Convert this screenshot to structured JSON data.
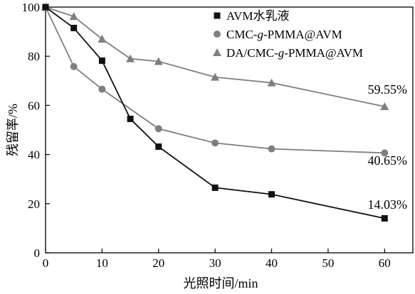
{
  "chart_data": {
    "type": "line",
    "xlabel": "光照时间/min",
    "ylabel": "残留率/%",
    "xlim": [
      0,
      65
    ],
    "ylim": [
      0,
      100
    ],
    "xticks": [
      0,
      10,
      20,
      30,
      40,
      50,
      60
    ],
    "yticks": [
      0,
      20,
      40,
      60,
      80,
      100
    ],
    "legend_position": "top-right",
    "series": [
      {
        "name_parts": [
          {
            "text": "AVM水乳液",
            "italic": false
          }
        ],
        "marker": "square",
        "color": "#111111",
        "x": [
          0,
          5,
          10,
          15,
          20,
          30,
          40,
          60
        ],
        "y": [
          100,
          91.5,
          78.2,
          54.5,
          43.2,
          26.5,
          23.8,
          14.03
        ],
        "end_label": "14.03%"
      },
      {
        "name_parts": [
          {
            "text": "CMC-",
            "italic": false
          },
          {
            "text": "g",
            "italic": true
          },
          {
            "text": "-PMMA@AVM",
            "italic": false
          }
        ],
        "marker": "circle",
        "color": "#7f7f7f",
        "x": [
          0,
          5,
          10,
          20,
          30,
          40,
          60
        ],
        "y": [
          100,
          75.8,
          66.6,
          50.5,
          44.7,
          42.3,
          40.65
        ],
        "end_label": "40.65%"
      },
      {
        "name_parts": [
          {
            "text": "DA/CMC-",
            "italic": false
          },
          {
            "text": "g",
            "italic": true
          },
          {
            "text": "-PMMA@AVM",
            "italic": false
          }
        ],
        "marker": "triangle",
        "color": "#7f7f7f",
        "x": [
          0,
          5,
          10,
          15,
          20,
          30,
          40,
          60
        ],
        "y": [
          100,
          96.2,
          87,
          79,
          77.9,
          71.5,
          69.2,
          59.55
        ],
        "end_label": "59.55%"
      }
    ]
  }
}
